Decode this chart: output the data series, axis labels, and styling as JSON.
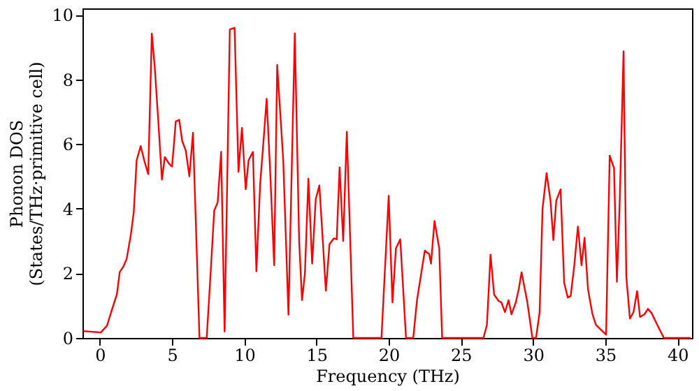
{
  "chart_data": {
    "type": "line",
    "xlabel": "Frequency (THz)",
    "ylabel": "Phonon DOS\n(States/THz·primitive cell)",
    "xlim": [
      -1.2,
      41
    ],
    "ylim": [
      0,
      10.2
    ],
    "xticks": [
      0,
      5,
      10,
      15,
      20,
      25,
      30,
      35,
      40
    ],
    "yticks": [
      0,
      2,
      4,
      6,
      8,
      10
    ],
    "grid": false,
    "marker": "none",
    "line_style": "solid",
    "series": [
      {
        "color": "#ff0000",
        "x": [
          -1.14,
          0.07,
          0.5,
          0.83,
          1.18,
          1.38,
          1.62,
          1.86,
          2.14,
          2.35,
          2.55,
          2.83,
          3.07,
          3.35,
          3.6,
          3.8,
          4.05,
          4.3,
          4.5,
          4.78,
          5.0,
          5.26,
          5.5,
          5.7,
          5.95,
          6.2,
          6.45,
          6.9,
          7.4,
          7.67,
          7.92,
          8.16,
          8.4,
          8.64,
          9.0,
          9.33,
          9.6,
          9.84,
          10.1,
          10.3,
          10.6,
          10.84,
          11.1,
          11.3,
          11.55,
          11.8,
          12.07,
          12.28,
          12.7,
          13.06,
          13.5,
          13.8,
          14.0,
          14.2,
          14.44,
          14.7,
          14.95,
          15.2,
          15.65,
          15.9,
          16.2,
          16.4,
          16.6,
          16.85,
          17.1,
          17.55,
          19.5,
          20.0,
          20.26,
          20.5,
          20.8,
          21.2,
          21.7,
          21.96,
          22.5,
          22.8,
          22.93,
          23.17,
          23.5,
          23.7,
          26.56,
          26.8,
          27.05,
          27.3,
          27.6,
          27.8,
          28.05,
          28.3,
          28.5,
          28.8,
          29.0,
          29.2,
          29.6,
          29.95,
          30.2,
          30.45,
          30.65,
          30.93,
          31.2,
          31.4,
          31.6,
          31.9,
          32.15,
          32.4,
          32.6,
          32.85,
          33.1,
          33.35,
          33.56,
          33.8,
          34.1,
          34.35,
          34.7,
          35.05,
          35.3,
          35.6,
          35.8,
          36.0,
          36.26,
          36.45,
          36.7,
          36.95,
          37.2,
          37.4,
          37.7,
          37.95,
          38.2,
          38.6,
          39.05,
          40.9
        ],
        "values": [
          0.21,
          0.17,
          0.38,
          0.86,
          1.35,
          2.04,
          2.2,
          2.45,
          3.17,
          3.9,
          5.5,
          5.94,
          5.5,
          5.07,
          9.42,
          8.4,
          6.7,
          4.9,
          5.6,
          5.4,
          5.3,
          6.7,
          6.75,
          6.1,
          5.8,
          5.0,
          6.35,
          0,
          0,
          2.0,
          3.94,
          4.2,
          5.76,
          0.2,
          9.55,
          9.6,
          5.14,
          6.5,
          4.6,
          5.5,
          5.76,
          2.06,
          4.76,
          5.9,
          7.4,
          5.1,
          2.25,
          8.45,
          5.5,
          0.72,
          9.43,
          3.0,
          1.17,
          2.0,
          4.93,
          2.3,
          4.3,
          4.72,
          1.46,
          2.9,
          3.08,
          3.05,
          5.28,
          3.0,
          6.38,
          0,
          0,
          4.4,
          1.1,
          2.77,
          3.05,
          0,
          0,
          1.17,
          2.7,
          2.6,
          2.3,
          3.62,
          2.77,
          0,
          0,
          0.4,
          2.58,
          1.34,
          1.15,
          1.1,
          0.8,
          1.17,
          0.73,
          1.1,
          1.5,
          2.03,
          1.1,
          0,
          0,
          0.8,
          4.0,
          5.1,
          4.25,
          3.03,
          4.25,
          4.6,
          1.7,
          1.25,
          1.3,
          2.25,
          3.45,
          2.25,
          3.1,
          1.5,
          0.75,
          0.4,
          0.25,
          0.1,
          5.64,
          5.26,
          1.74,
          4.3,
          8.87,
          1.9,
          0.6,
          0.8,
          1.45,
          0.65,
          0.73,
          0.9,
          0.77,
          0.4,
          0,
          0
        ]
      }
    ]
  }
}
